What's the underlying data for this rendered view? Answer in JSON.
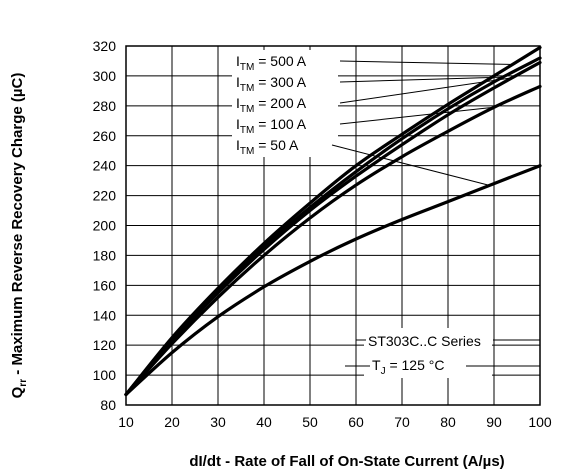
{
  "chart_data": {
    "type": "line",
    "xlabel": "dI/dt - Rate of Fall of On-State Current (A/µs)",
    "ylabel_main": "Q",
    "ylabel_sub": "rr",
    "ylabel_rest": " - Maximum Reverse Recovery Charge (µC)",
    "xlim": [
      10,
      100
    ],
    "ylim": [
      80,
      320
    ],
    "xticks": [
      10,
      20,
      30,
      40,
      50,
      60,
      70,
      80,
      90,
      100
    ],
    "yticks": [
      80,
      100,
      120,
      140,
      160,
      180,
      200,
      220,
      240,
      260,
      280,
      300,
      320
    ],
    "grid": true,
    "x": [
      10,
      20,
      30,
      40,
      50,
      60,
      70,
      80,
      90,
      100
    ],
    "series": [
      {
        "name_main": "I",
        "name_sub": "TM",
        "name_value": " = 500 A",
        "values": [
          87,
          125,
          158,
          188,
          215,
          240,
          261,
          281,
          300,
          319
        ]
      },
      {
        "name_main": "I",
        "name_sub": "TM",
        "name_value": " = 300 A",
        "values": [
          87,
          124,
          156,
          186,
          212,
          236,
          258,
          278,
          296,
          312
        ]
      },
      {
        "name_main": "I",
        "name_sub": "TM",
        "name_value": " = 200 A",
        "values": [
          87,
          123,
          155,
          184,
          210,
          233,
          254,
          274,
          292,
          309
        ]
      },
      {
        "name_main": "I",
        "name_sub": "TM",
        "name_value": " = 100 A",
        "values": [
          87,
          121,
          152,
          180,
          205,
          227,
          246,
          263,
          279,
          293
        ]
      },
      {
        "name_main": "I",
        "name_sub": "TM",
        "name_value": " = 50 A",
        "values": [
          87,
          115,
          139,
          159,
          176,
          191,
          204,
          216,
          228,
          240
        ]
      }
    ],
    "annotation_series": "ST303C..C Series",
    "annotation_temp_main": "T",
    "annotation_temp_sub": "J",
    "annotation_temp_value": " = 125 °C"
  }
}
